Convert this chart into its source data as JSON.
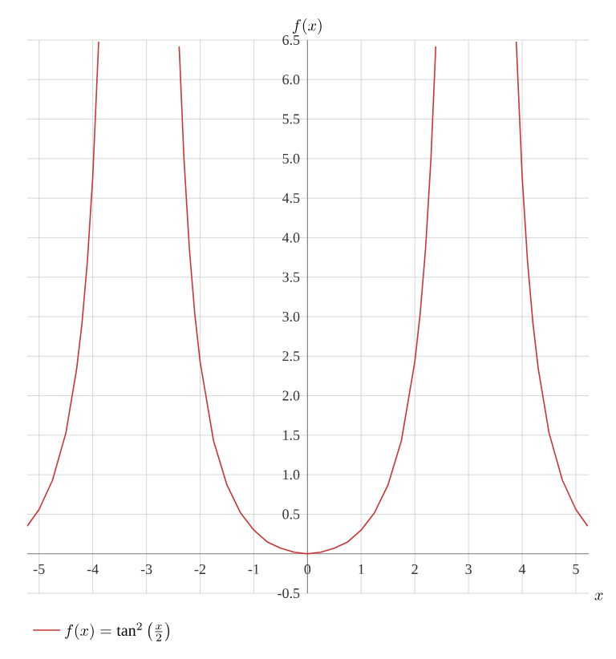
{
  "chart_data": {
    "type": "line",
    "xlabel": "x",
    "ylabel": "f(x)",
    "series": [
      {
        "name": "f(x) = \\tan^2\\left(\\frac{x}{2}\\right)",
        "color": "#cc3333",
        "x": [
          -5.22,
          -5,
          -4.75,
          -4.5,
          -4.3,
          -4.2,
          -4.1,
          -4,
          -3.89,
          -3.14,
          -2.39,
          -2.3,
          -2.2,
          -2.1,
          -2,
          -1.75,
          -1.5,
          -1.25,
          -1,
          -0.75,
          -0.5,
          -0.25,
          0,
          0.25,
          0.5,
          0.75,
          1,
          1.25,
          1.5,
          1.75,
          2,
          2.1,
          2.2,
          2.3,
          2.39,
          3.14,
          3.89,
          4,
          4.1,
          4.2,
          4.3,
          4.5,
          4.75,
          5,
          5.22
        ],
        "values": [
          0.35,
          0.56,
          0.93,
          1.53,
          2.34,
          2.92,
          3.7,
          4.77,
          6.48,
          null,
          6.42,
          4.99,
          3.86,
          3.04,
          2.43,
          1.43,
          0.87,
          0.52,
          0.3,
          0.15,
          0.07,
          0.02,
          0,
          0.02,
          0.07,
          0.15,
          0.3,
          0.52,
          0.87,
          1.43,
          2.43,
          3.04,
          3.86,
          4.99,
          6.42,
          null,
          6.48,
          4.77,
          3.7,
          2.92,
          2.34,
          1.53,
          0.93,
          0.56,
          0.35
        ]
      }
    ],
    "xlim": [
      -5.22,
      5.24
    ],
    "ylim": [
      -0.5,
      6.5
    ],
    "xticks": [
      -5,
      -4,
      -3,
      -2,
      -1,
      0,
      1,
      2,
      3,
      4,
      5
    ],
    "yticks": [
      -0.5,
      0.5,
      {
        "value": 1,
        "label": "1.0"
      },
      1.5,
      {
        "value": 2,
        "label": "2.0"
      },
      2.5,
      {
        "value": 3,
        "label": "3.0"
      },
      3.5,
      {
        "value": 4,
        "label": "4.0"
      },
      4.5,
      {
        "value": 5,
        "label": "5.0"
      },
      5.5,
      {
        "value": 6,
        "label": "6.0"
      },
      6.5
    ],
    "grid": true,
    "legend": "bottom left"
  }
}
